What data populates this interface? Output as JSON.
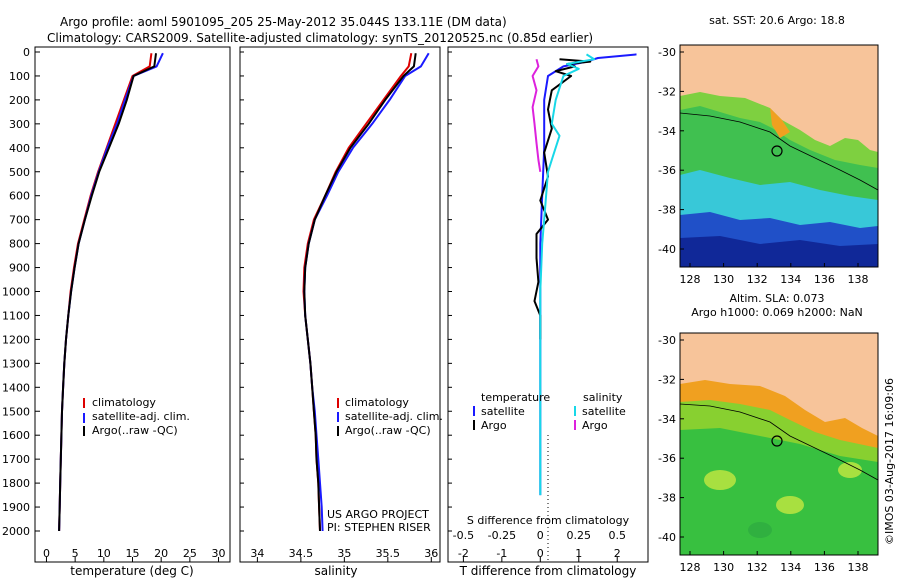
{
  "header": {
    "line1": "Argo profile: aoml 5901095_205 25-May-2012 35.044S 133.11E (DM data)",
    "line2": "Climatology: CARS2009. Satellite-adjusted climatology: synTS_20120525.nc (0.85d earlier)"
  },
  "colors": {
    "climatology": "#dd0000",
    "satellite": "#1a1aff",
    "argo": "#000000",
    "sal_satellite": "#18d8e8",
    "sal_argo": "#dd22dd"
  },
  "chart_data": [
    {
      "type": "line",
      "xlabel": "temperature (deg C)",
      "ylabel": "",
      "xlim": [
        -2,
        32
      ],
      "ylim": [
        2050,
        0
      ],
      "xticks": [
        "0",
        "5",
        "10",
        "15",
        "20",
        "25",
        "30"
      ],
      "yticks": [
        "0",
        "100",
        "200",
        "300",
        "400",
        "500",
        "600",
        "700",
        "800",
        "900",
        "1000",
        "1100",
        "1200",
        "1300",
        "1400",
        "1500",
        "1600",
        "1700",
        "1800",
        "1900",
        "2000"
      ],
      "legend": [
        "climatology",
        "satellite-adj. clim.",
        "Argo(..raw -QC)"
      ],
      "legend_position": "lower-center",
      "series": [
        {
          "name": "climatology",
          "color": "#dd0000",
          "points": [
            [
              18.3,
              5
            ],
            [
              18.0,
              60
            ],
            [
              15.0,
              100
            ],
            [
              13.5,
              200
            ],
            [
              12.0,
              300
            ],
            [
              10.5,
              400
            ],
            [
              9.0,
              500
            ],
            [
              7.7,
              600
            ],
            [
              6.6,
              700
            ],
            [
              5.5,
              800
            ],
            [
              4.8,
              900
            ],
            [
              4.2,
              1000
            ],
            [
              3.8,
              1100
            ],
            [
              3.4,
              1200
            ],
            [
              3.1,
              1300
            ],
            [
              2.9,
              1400
            ],
            [
              2.7,
              1500
            ],
            [
              2.6,
              1600
            ],
            [
              2.5,
              1700
            ],
            [
              2.4,
              1800
            ],
            [
              2.3,
              1900
            ],
            [
              2.2,
              2000
            ]
          ]
        },
        {
          "name": "satellite-adj. clim.",
          "color": "#1a1aff",
          "points": [
            [
              20.3,
              5
            ],
            [
              19.2,
              60
            ],
            [
              15.2,
              100
            ],
            [
              13.7,
              200
            ],
            [
              12.3,
              300
            ],
            [
              10.6,
              400
            ],
            [
              9.1,
              500
            ],
            [
              7.8,
              600
            ],
            [
              6.7,
              700
            ],
            [
              5.6,
              800
            ],
            [
              4.9,
              900
            ],
            [
              4.3,
              1000
            ],
            [
              3.8,
              1100
            ],
            [
              3.4,
              1200
            ],
            [
              3.1,
              1300
            ],
            [
              2.9,
              1400
            ],
            [
              2.7,
              1500
            ],
            [
              2.6,
              1600
            ],
            [
              2.5,
              1700
            ],
            [
              2.4,
              1800
            ],
            [
              2.3,
              1900
            ],
            [
              2.2,
              2000
            ]
          ]
        },
        {
          "name": "Argo(..raw -QC)",
          "color": "#000000",
          "points": [
            [
              19.1,
              5
            ],
            [
              18.8,
              60
            ],
            [
              15.2,
              100
            ],
            [
              14.0,
              200
            ],
            [
              12.6,
              300
            ],
            [
              10.9,
              400
            ],
            [
              9.2,
              500
            ],
            [
              7.9,
              600
            ],
            [
              6.7,
              700
            ],
            [
              5.6,
              800
            ],
            [
              4.9,
              900
            ],
            [
              4.3,
              1000
            ],
            [
              3.8,
              1100
            ],
            [
              3.4,
              1200
            ],
            [
              3.1,
              1300
            ],
            [
              2.9,
              1400
            ],
            [
              2.7,
              1500
            ],
            [
              2.6,
              1600
            ],
            [
              2.5,
              1700
            ],
            [
              2.4,
              1800
            ],
            [
              2.3,
              1900
            ],
            [
              2.2,
              2000
            ]
          ]
        }
      ]
    },
    {
      "type": "line",
      "xlabel": "salinity",
      "xlim": [
        33.8,
        36.1
      ],
      "ylim": [
        2050,
        0
      ],
      "xticks": [
        "34",
        "34.5",
        "35",
        "35.5",
        "36"
      ],
      "legend": [
        "climatology",
        "satellite-adj. clim.",
        "Argo(..raw -QC)"
      ],
      "legend_position": "lower-center",
      "annotation": [
        "US ARGO PROJECT",
        "PI: STEPHEN RISER"
      ],
      "series": [
        {
          "name": "climatology",
          "color": "#dd0000",
          "points": [
            [
              35.77,
              5
            ],
            [
              35.74,
              60
            ],
            [
              35.65,
              100
            ],
            [
              35.45,
              200
            ],
            [
              35.25,
              300
            ],
            [
              35.05,
              400
            ],
            [
              34.9,
              500
            ],
            [
              34.78,
              600
            ],
            [
              34.65,
              700
            ],
            [
              34.58,
              800
            ],
            [
              34.54,
              900
            ],
            [
              34.53,
              1000
            ],
            [
              34.55,
              1100
            ],
            [
              34.58,
              1200
            ],
            [
              34.61,
              1300
            ],
            [
              34.63,
              1400
            ],
            [
              34.65,
              1500
            ],
            [
              34.67,
              1600
            ],
            [
              34.68,
              1700
            ],
            [
              34.7,
              1800
            ],
            [
              34.71,
              1900
            ],
            [
              34.72,
              2000
            ]
          ]
        },
        {
          "name": "satellite-adj. clim.",
          "color": "#1a1aff",
          "points": [
            [
              35.97,
              5
            ],
            [
              35.88,
              60
            ],
            [
              35.7,
              100
            ],
            [
              35.52,
              200
            ],
            [
              35.32,
              300
            ],
            [
              35.1,
              400
            ],
            [
              34.93,
              500
            ],
            [
              34.8,
              600
            ],
            [
              34.66,
              700
            ],
            [
              34.59,
              800
            ],
            [
              34.55,
              900
            ],
            [
              34.54,
              1000
            ],
            [
              34.55,
              1100
            ],
            [
              34.58,
              1200
            ],
            [
              34.61,
              1300
            ],
            [
              34.63,
              1400
            ],
            [
              34.66,
              1500
            ],
            [
              34.68,
              1600
            ],
            [
              34.7,
              1700
            ],
            [
              34.72,
              1800
            ],
            [
              34.74,
              1900
            ],
            [
              34.75,
              2000
            ]
          ]
        },
        {
          "name": "Argo(..raw -QC)",
          "color": "#000000",
          "points": [
            [
              35.82,
              5
            ],
            [
              35.8,
              60
            ],
            [
              35.68,
              100
            ],
            [
              35.47,
              200
            ],
            [
              35.28,
              300
            ],
            [
              35.07,
              400
            ],
            [
              34.91,
              500
            ],
            [
              34.78,
              600
            ],
            [
              34.66,
              700
            ],
            [
              34.59,
              800
            ],
            [
              34.55,
              900
            ],
            [
              34.54,
              1000
            ],
            [
              34.55,
              1100
            ],
            [
              34.58,
              1200
            ],
            [
              34.61,
              1300
            ],
            [
              34.63,
              1400
            ],
            [
              34.65,
              1500
            ],
            [
              34.67,
              1600
            ],
            [
              34.68,
              1700
            ],
            [
              34.7,
              1800
            ],
            [
              34.71,
              1900
            ],
            [
              34.72,
              2000
            ]
          ]
        }
      ]
    },
    {
      "type": "line",
      "xlabel": "T difference from climatology",
      "xlabel_top": "S difference from climatology",
      "xlim": [
        -2.4,
        2.8
      ],
      "xticks": [
        "-2",
        "-1",
        "0",
        "1",
        "2"
      ],
      "xticks_top": [
        "-0.5",
        "-0.25",
        "0",
        "0.25",
        "0.5"
      ],
      "legend_headers": [
        "temperature",
        "salinity"
      ],
      "legend": [
        "satellite",
        "Argo",
        "satellite",
        "Argo"
      ],
      "series": [
        {
          "name": "temperature satellite",
          "color": "#1a1aff",
          "points": [
            [
              2.5,
              10
            ],
            [
              1.5,
              25
            ],
            [
              1.2,
              40
            ],
            [
              0.6,
              60
            ],
            [
              0.2,
              100
            ],
            [
              0.1,
              200
            ],
            [
              0.1,
              400
            ],
            [
              0.05,
              600
            ],
            [
              0.0,
              800
            ],
            [
              0.0,
              1600
            ],
            [
              0.0,
              1850
            ]
          ]
        },
        {
          "name": "temperature Argo",
          "color": "#000000",
          "points": [
            [
              0.5,
              30
            ],
            [
              1.3,
              40
            ],
            [
              0.7,
              50
            ],
            [
              0.9,
              60
            ],
            [
              0.4,
              80
            ],
            [
              0.8,
              100
            ],
            [
              0.3,
              160
            ],
            [
              0.2,
              240
            ],
            [
              0.3,
              320
            ],
            [
              0.1,
              420
            ],
            [
              0.2,
              520
            ],
            [
              0.0,
              620
            ],
            [
              0.2,
              700
            ],
            [
              -0.1,
              760
            ],
            [
              -0.1,
              860
            ],
            [
              -0.05,
              960
            ],
            [
              -0.15,
              1040
            ],
            [
              0.0,
              1100
            ],
            [
              0.0,
              1200
            ]
          ]
        },
        {
          "name": "salinity satellite",
          "color": "#18d8e8",
          "points": [
            [
              1.2,
              10
            ],
            [
              1.4,
              30
            ],
            [
              0.7,
              50
            ],
            [
              1.0,
              70
            ],
            [
              0.6,
              100
            ],
            [
              0.4,
              200
            ],
            [
              0.3,
              300
            ],
            [
              0.5,
              350
            ],
            [
              0.3,
              450
            ],
            [
              0.2,
              500
            ],
            [
              0.1,
              700
            ],
            [
              0.05,
              800
            ],
            [
              0.0,
              1000
            ],
            [
              0.0,
              1850
            ]
          ]
        },
        {
          "name": "salinity Argo",
          "color": "#dd22dd",
          "points": [
            [
              -0.1,
              30
            ],
            [
              -0.05,
              60
            ],
            [
              -0.2,
              100
            ],
            [
              -0.1,
              160
            ],
            [
              -0.2,
              230
            ],
            [
              -0.15,
              300
            ],
            [
              -0.1,
              380
            ],
            [
              -0.05,
              450
            ],
            [
              0.0,
              500
            ]
          ]
        }
      ]
    }
  ],
  "maps": {
    "top_title": "sat. SST: 20.6 Argo: 18.8",
    "bottom_title_1": "Altim. SLA: 0.073",
    "bottom_title_2": "Argo h1000: 0.069 h2000: NaN",
    "lat_labels": [
      "-30",
      "-32",
      "-34",
      "-36",
      "-38",
      "-40"
    ],
    "lon_labels": [
      "128",
      "130",
      "132",
      "134",
      "136",
      "138"
    ]
  },
  "stamp": "©IMOS 03-Aug-2017 16:09:06"
}
